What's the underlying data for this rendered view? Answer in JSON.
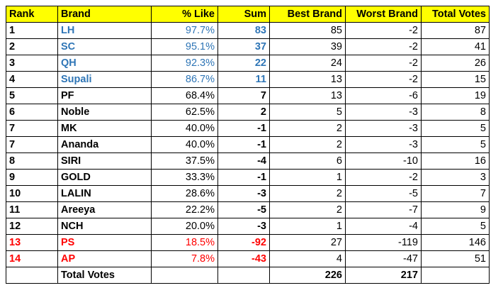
{
  "headers": [
    "Rank",
    "Brand",
    "% Like",
    "Sum",
    "Best Brand",
    "Worst Brand",
    "Total Votes"
  ],
  "colors": {
    "header_bg": "#ffff00",
    "top": "#2e75b6",
    "bottom": "#ff0000"
  },
  "rows": [
    {
      "rank": "1",
      "brand": "LH",
      "like": "97.7%",
      "sum": "83",
      "best": "85",
      "worst": "-2",
      "total": "87",
      "tier": "top"
    },
    {
      "rank": "2",
      "brand": "SC",
      "like": "95.1%",
      "sum": "37",
      "best": "39",
      "worst": "-2",
      "total": "41",
      "tier": "top"
    },
    {
      "rank": "3",
      "brand": "QH",
      "like": "92.3%",
      "sum": "22",
      "best": "24",
      "worst": "-2",
      "total": "26",
      "tier": "top"
    },
    {
      "rank": "4",
      "brand": "Supali",
      "like": "86.7%",
      "sum": "11",
      "best": "13",
      "worst": "-2",
      "total": "15",
      "tier": "top"
    },
    {
      "rank": "5",
      "brand": "PF",
      "like": "68.4%",
      "sum": "7",
      "best": "13",
      "worst": "-6",
      "total": "19",
      "tier": "mid"
    },
    {
      "rank": "6",
      "brand": "Noble",
      "like": "62.5%",
      "sum": "2",
      "best": "5",
      "worst": "-3",
      "total": "8",
      "tier": "mid"
    },
    {
      "rank": "7",
      "brand": "MK",
      "like": "40.0%",
      "sum": "-1",
      "best": "2",
      "worst": "-3",
      "total": "5",
      "tier": "mid"
    },
    {
      "rank": "7",
      "brand": "Ananda",
      "like": "40.0%",
      "sum": "-1",
      "best": "2",
      "worst": "-3",
      "total": "5",
      "tier": "mid"
    },
    {
      "rank": "8",
      "brand": "SIRI",
      "like": "37.5%",
      "sum": "-4",
      "best": "6",
      "worst": "-10",
      "total": "16",
      "tier": "mid"
    },
    {
      "rank": "9",
      "brand": "GOLD",
      "like": "33.3%",
      "sum": "-1",
      "best": "1",
      "worst": "-2",
      "total": "3",
      "tier": "mid"
    },
    {
      "rank": "10",
      "brand": "LALIN",
      "like": "28.6%",
      "sum": "-3",
      "best": "2",
      "worst": "-5",
      "total": "7",
      "tier": "mid"
    },
    {
      "rank": "11",
      "brand": "Areeya",
      "like": "22.2%",
      "sum": "-5",
      "best": "2",
      "worst": "-7",
      "total": "9",
      "tier": "mid"
    },
    {
      "rank": "12",
      "brand": "NCH",
      "like": "20.0%",
      "sum": "-3",
      "best": "1",
      "worst": "-4",
      "total": "5",
      "tier": "mid"
    },
    {
      "rank": "13",
      "brand": "PS",
      "like": "18.5%",
      "sum": "-92",
      "best": "27",
      "worst": "-119",
      "total": "146",
      "tier": "bottom"
    },
    {
      "rank": "14",
      "brand": "AP",
      "like": "7.8%",
      "sum": "-43",
      "best": "4",
      "worst": "-47",
      "total": "51",
      "tier": "bottom"
    }
  ],
  "footer": {
    "label": "Total Votes",
    "best_total": "226",
    "worst_total": "217"
  }
}
